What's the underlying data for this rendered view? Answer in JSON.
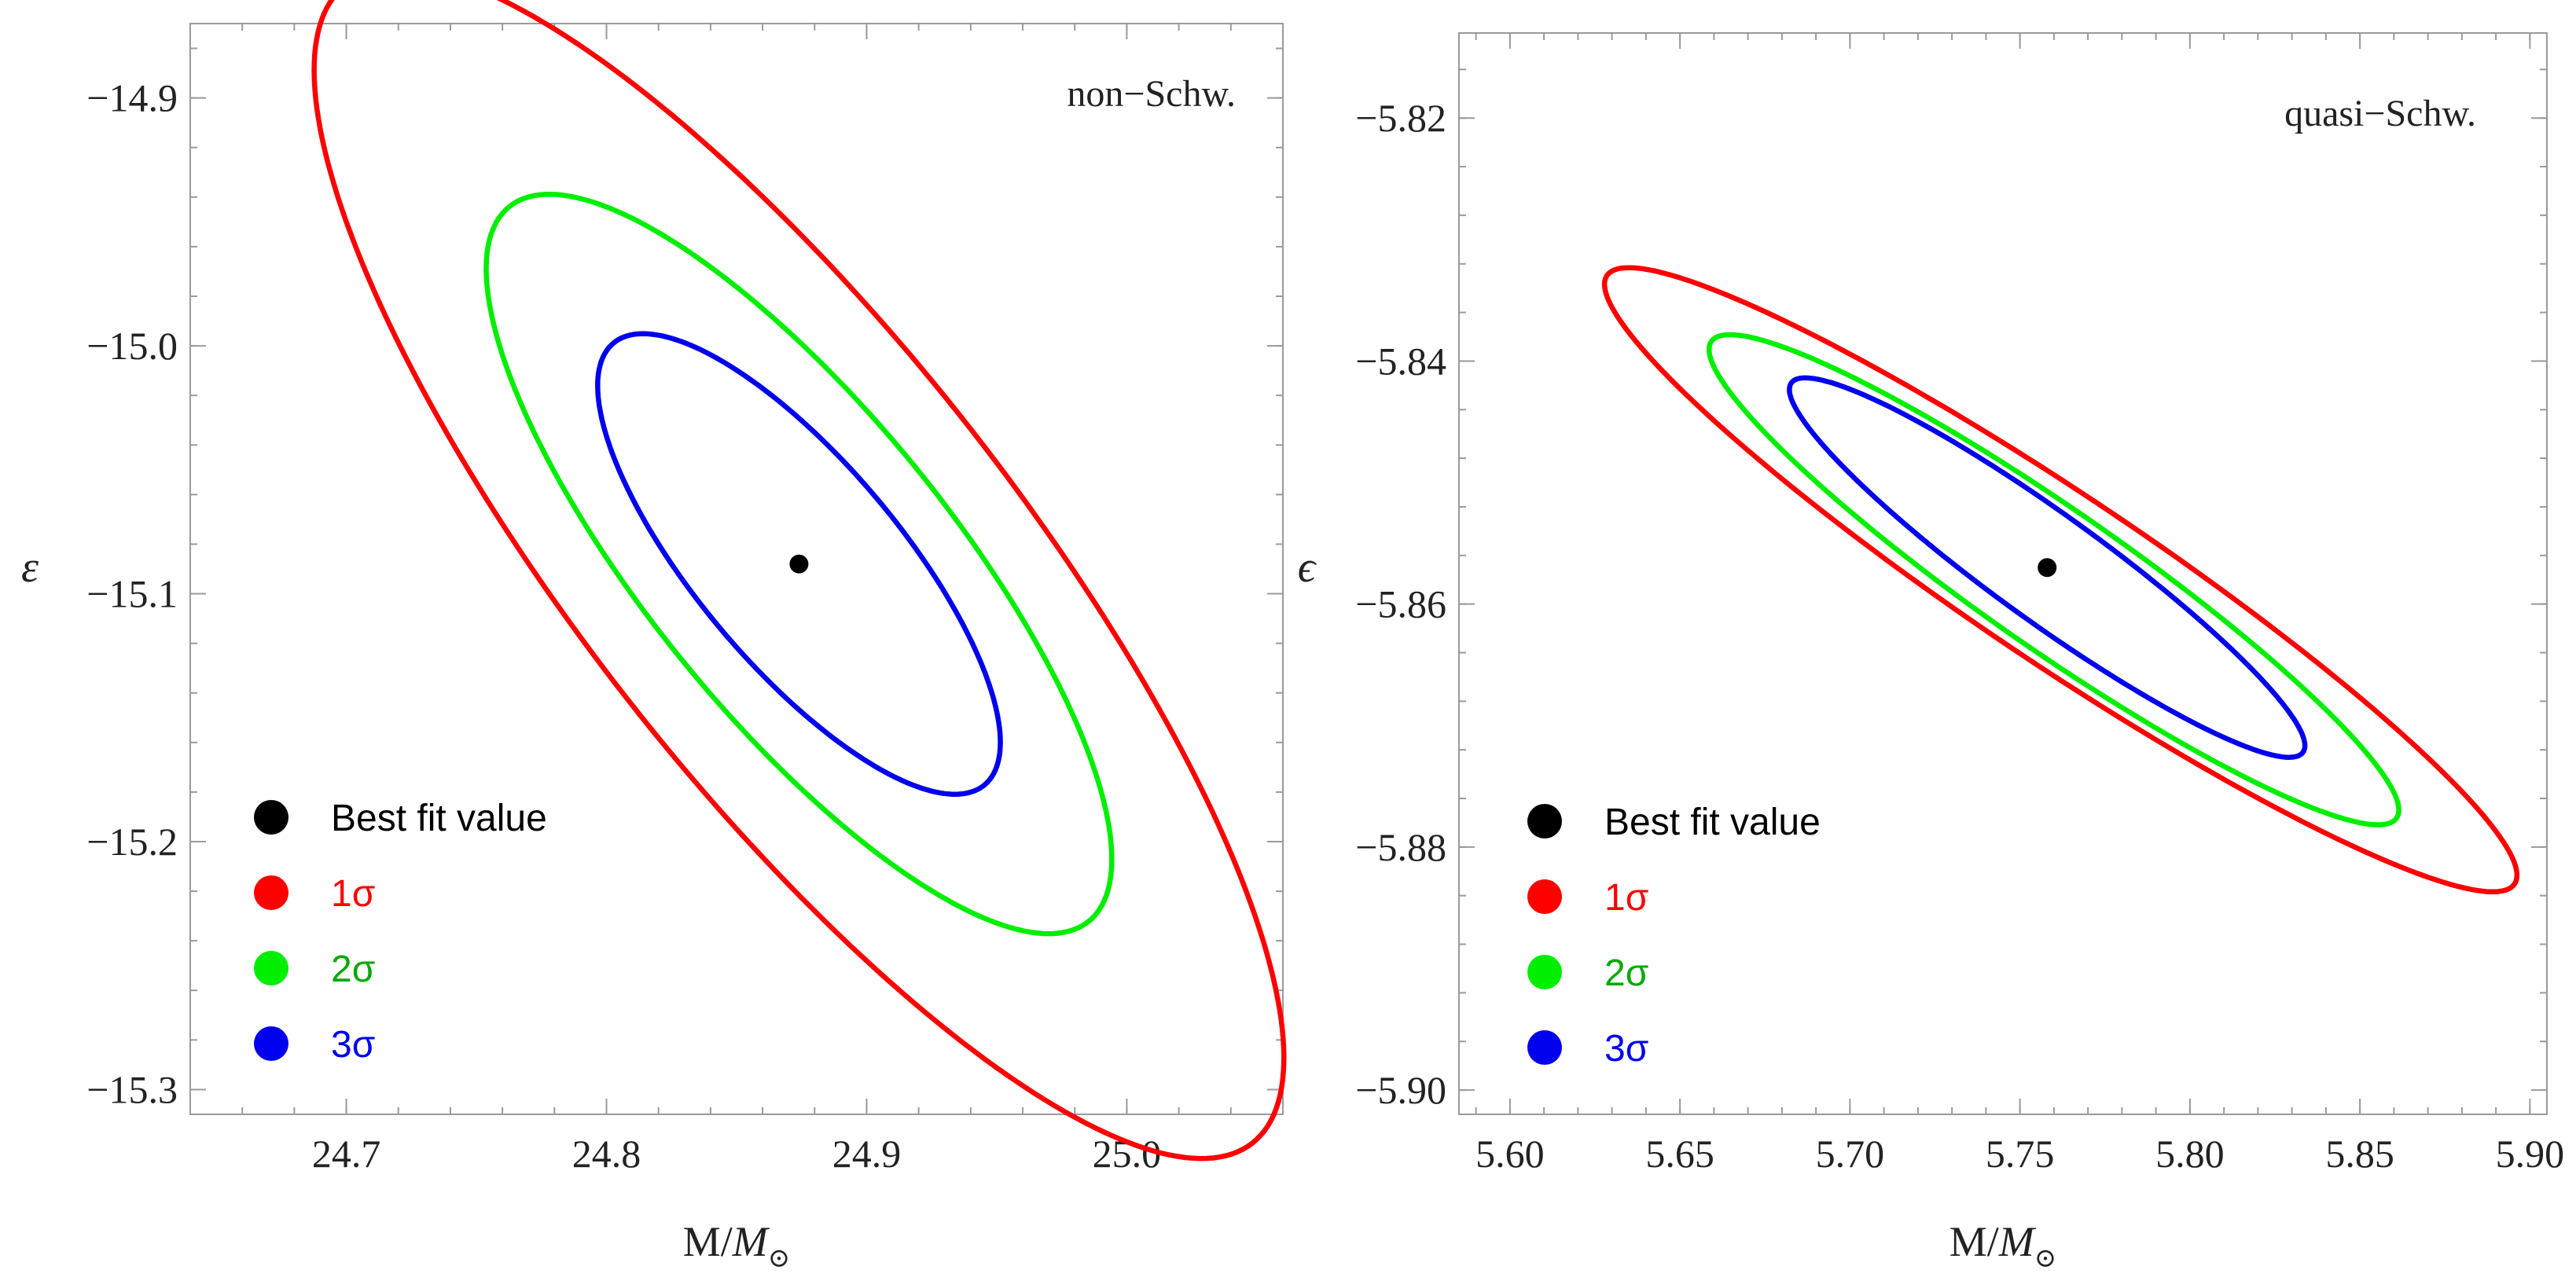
{
  "chart_data": [
    {
      "type": "scatter",
      "title": "non−Schw.",
      "xlabel_main": "M/",
      "xlabel_italic": "M",
      "xlabel_sub": "⊙",
      "ylabel": "ε",
      "xlim": [
        24.64,
        25.06
      ],
      "ylim": [
        -15.31,
        -14.87
      ],
      "xticks": [
        24.7,
        24.8,
        24.9,
        25.0
      ],
      "xtick_labels": [
        "24.7",
        "24.8",
        "24.9",
        "25.0"
      ],
      "yticks": [
        -14.9,
        -15.0,
        -15.1,
        -15.2,
        -15.3
      ],
      "ytick_labels": [
        "−14.9",
        "−15.0",
        "−15.1",
        "−15.2",
        "−15.3"
      ],
      "best_fit": {
        "x": 24.874,
        "y": -15.088
      },
      "contours": [
        {
          "name": "1σ",
          "color": "#ff0000",
          "cx": 24.874,
          "cy": -15.088,
          "angle_deg": 52,
          "a": 0.283,
          "b": 0.088
        },
        {
          "name": "2σ",
          "color": "#00ee00",
          "cx": 24.874,
          "cy": -15.088,
          "angle_deg": 51,
          "a": 0.177,
          "b": 0.061
        },
        {
          "name": "3σ",
          "color": "#0000ee",
          "cx": 24.874,
          "cy": -15.088,
          "angle_deg": 50,
          "a": 0.111,
          "b": 0.041
        }
      ],
      "legend": [
        {
          "label": "Best fit value",
          "color": "#000000",
          "text_color": "#000000"
        },
        {
          "label": "1σ",
          "color": "#ff0000",
          "text_color": "#ff0000"
        },
        {
          "label": "2σ",
          "color": "#00ee00",
          "text_color": "#00aa00"
        },
        {
          "label": "3σ",
          "color": "#0000ee",
          "text_color": "#0000ee"
        }
      ]
    },
    {
      "type": "scatter",
      "title": "quasi−Schw.",
      "xlabel_main": "M/",
      "xlabel_italic": "M",
      "xlabel_sub": "⊙",
      "ylabel": "ϵ",
      "xlim": [
        5.585,
        5.905
      ],
      "ylim": [
        -5.902,
        -5.813
      ],
      "xticks": [
        5.6,
        5.65,
        5.7,
        5.75,
        5.8,
        5.85,
        5.9
      ],
      "xtick_labels": [
        "5.60",
        "5.65",
        "5.70",
        "5.75",
        "5.80",
        "5.85",
        "5.90"
      ],
      "yticks": [
        -5.82,
        -5.84,
        -5.86,
        -5.88,
        -5.9
      ],
      "ytick_labels": [
        "−5.82",
        "−5.84",
        "−5.86",
        "−5.88",
        "−5.90"
      ],
      "best_fit": {
        "x": 5.758,
        "y": -5.857
      },
      "contours": [
        {
          "name": "1σ",
          "color": "#ff0000",
          "cx": 5.762,
          "cy": -5.858,
          "angle_deg": 34,
          "a": 0.161,
          "b": 0.0069
        },
        {
          "name": "2σ",
          "color": "#00ee00",
          "cx": 5.76,
          "cy": -5.858,
          "angle_deg": 35,
          "a": 0.123,
          "b": 0.0057
        },
        {
          "name": "3σ",
          "color": "#0000ee",
          "cx": 5.758,
          "cy": -5.857,
          "angle_deg": 36,
          "a": 0.093,
          "b": 0.0044
        }
      ],
      "legend": [
        {
          "label": "Best fit value",
          "color": "#000000",
          "text_color": "#000000"
        },
        {
          "label": "1σ",
          "color": "#ff0000",
          "text_color": "#ff0000"
        },
        {
          "label": "2σ",
          "color": "#00ee00",
          "text_color": "#00aa00"
        },
        {
          "label": "3σ",
          "color": "#0000ee",
          "text_color": "#0000ee"
        }
      ]
    }
  ]
}
